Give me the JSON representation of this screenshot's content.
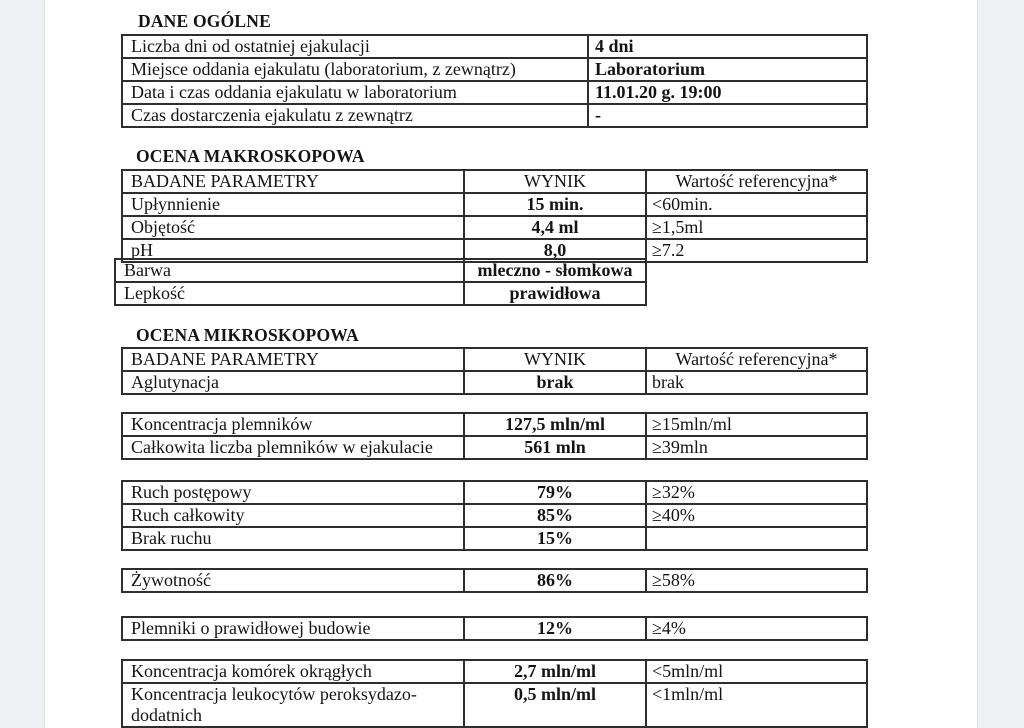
{
  "page": {
    "background": "#ffffff",
    "margin_color": "#eef0f3",
    "line_color": "#2e2e2e",
    "text_color": "#141414"
  },
  "general": {
    "title": "DANE OGÓLNE",
    "rows": [
      {
        "label": "Liczba dni od ostatniej ejakulacji",
        "value": "4 dni"
      },
      {
        "label": "Miejsce oddania ejakulatu (laboratorium, z zewnątrz)",
        "value": "Laboratorium"
      },
      {
        "label": "Data i czas oddania ejakulatu w laboratorium",
        "value": "11.01.20 g. 19:00"
      },
      {
        "label": "Czas dostarczenia ejakulatu z zewnątrz",
        "value": "-"
      }
    ]
  },
  "macroscopic": {
    "title": "OCENA MAKROSKOPOWA",
    "headers": [
      "BADANE PARAMETRY",
      "WYNIK",
      "Wartość referencyjna*"
    ],
    "rows": [
      {
        "param": "Upłynnienie",
        "result": "15 min.",
        "reference": "<60min."
      },
      {
        "param": "Objętość",
        "result": "4,4 ml",
        "reference": "≥1,5ml"
      },
      {
        "param": "pH",
        "result": "8,0",
        "reference": "≥7.2"
      }
    ],
    "appearance_rows": [
      {
        "param": "Barwa",
        "result": "mleczno - słomkowa"
      },
      {
        "param": "Lepkość",
        "result": "prawidłowa"
      }
    ]
  },
  "microscopic": {
    "title": "OCENA MIKROSKOPOWA",
    "headers": [
      "BADANE PARAMETRY",
      "WYNIK",
      "Wartość referencyjna*"
    ],
    "agglutination": {
      "param": "Aglutynacja",
      "result": "brak",
      "reference": "brak"
    },
    "concentration": [
      {
        "param": "Koncentracja plemników",
        "result": "127,5 mln/ml",
        "reference": "≥15mln/ml"
      },
      {
        "param": "Całkowita liczba plemników w ejakulacie",
        "result": "561 mln",
        "reference": "≥39mln"
      }
    ],
    "motility": [
      {
        "param": "Ruch postępowy",
        "result": "79%",
        "reference": "≥32%"
      },
      {
        "param": "Ruch całkowity",
        "result": "85%",
        "reference": "≥40%"
      },
      {
        "param": "Brak ruchu",
        "result": "15%",
        "reference": ""
      }
    ],
    "vitality": [
      {
        "param": "Żywotność",
        "result": "86%",
        "reference": "≥58%"
      }
    ],
    "morphology": [
      {
        "param": "Plemniki o prawidłowej budowie",
        "result": "12%",
        "reference": "≥4%"
      }
    ],
    "cells": [
      {
        "param": "Koncentracja komórek okrągłych",
        "result": "2,7 mln/ml",
        "reference": "<5mln/ml"
      },
      {
        "param": "Koncentracja leukocytów peroksydazo-\ndodatnich",
        "result": "0,5 mln/ml",
        "reference": "<1mln/ml"
      }
    ]
  }
}
